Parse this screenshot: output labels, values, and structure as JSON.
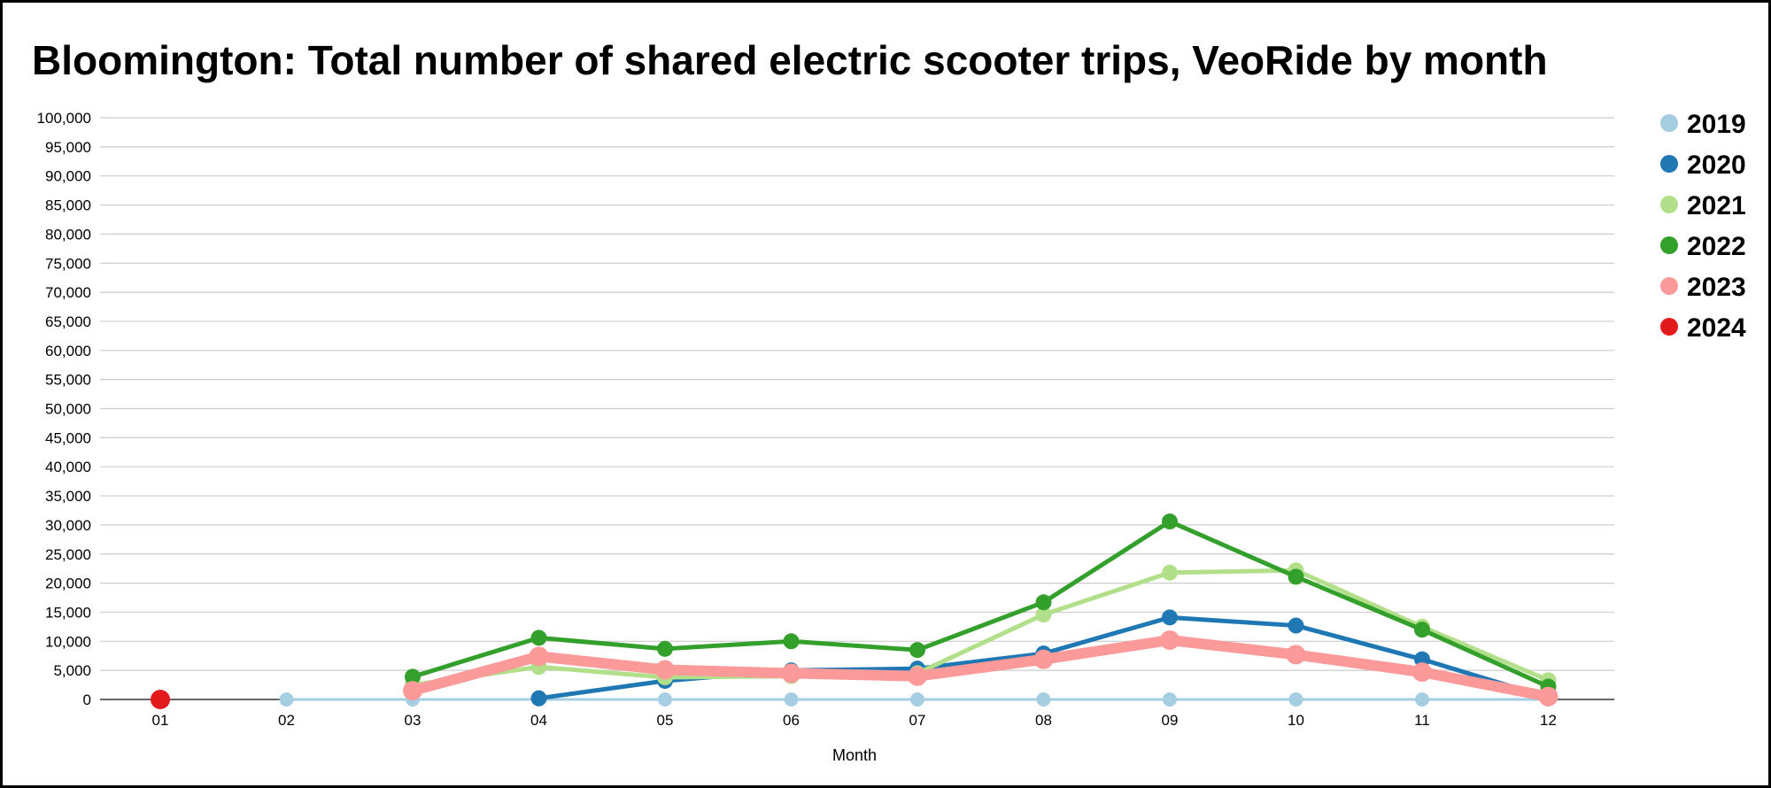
{
  "chart_data": {
    "type": "line",
    "title": "Bloomington: Total number of shared electric scooter trips, VeoRide by month",
    "xlabel": "Month",
    "ylabel": "",
    "categories": [
      "01",
      "02",
      "03",
      "04",
      "05",
      "06",
      "07",
      "08",
      "09",
      "10",
      "11",
      "12"
    ],
    "ylim": [
      0,
      100000
    ],
    "yticks": [
      0,
      5000,
      10000,
      15000,
      20000,
      25000,
      30000,
      35000,
      40000,
      45000,
      50000,
      55000,
      60000,
      65000,
      70000,
      75000,
      80000,
      85000,
      90000,
      95000,
      100000
    ],
    "grid": true,
    "legend_position": "right",
    "series": [
      {
        "name": "2019",
        "color": "#a6cee3",
        "values": [
          null,
          0,
          0,
          0,
          0,
          0,
          0,
          0,
          0,
          0,
          0,
          0
        ]
      },
      {
        "name": "2020",
        "color": "#1f78b4",
        "values": [
          null,
          null,
          null,
          200,
          3200,
          5000,
          5300,
          7900,
          14100,
          12700,
          6900,
          300
        ]
      },
      {
        "name": "2021",
        "color": "#b2df8a",
        "values": [
          null,
          null,
          2500,
          5600,
          3800,
          4000,
          4500,
          14600,
          21800,
          22200,
          12500,
          3300
        ]
      },
      {
        "name": "2022",
        "color": "#33a02c",
        "values": [
          null,
          null,
          3900,
          10600,
          8700,
          10000,
          8500,
          16700,
          30600,
          21100,
          12000,
          2200
        ]
      },
      {
        "name": "2023",
        "color": "#fb9a99",
        "values": [
          null,
          null,
          1500,
          7400,
          5100,
          4500,
          4000,
          6900,
          10200,
          7700,
          4700,
          500
        ]
      },
      {
        "name": "2024",
        "color": "#e31a1c",
        "values": [
          0,
          null,
          null,
          null,
          null,
          null,
          null,
          null,
          null,
          null,
          null,
          null
        ]
      }
    ]
  }
}
